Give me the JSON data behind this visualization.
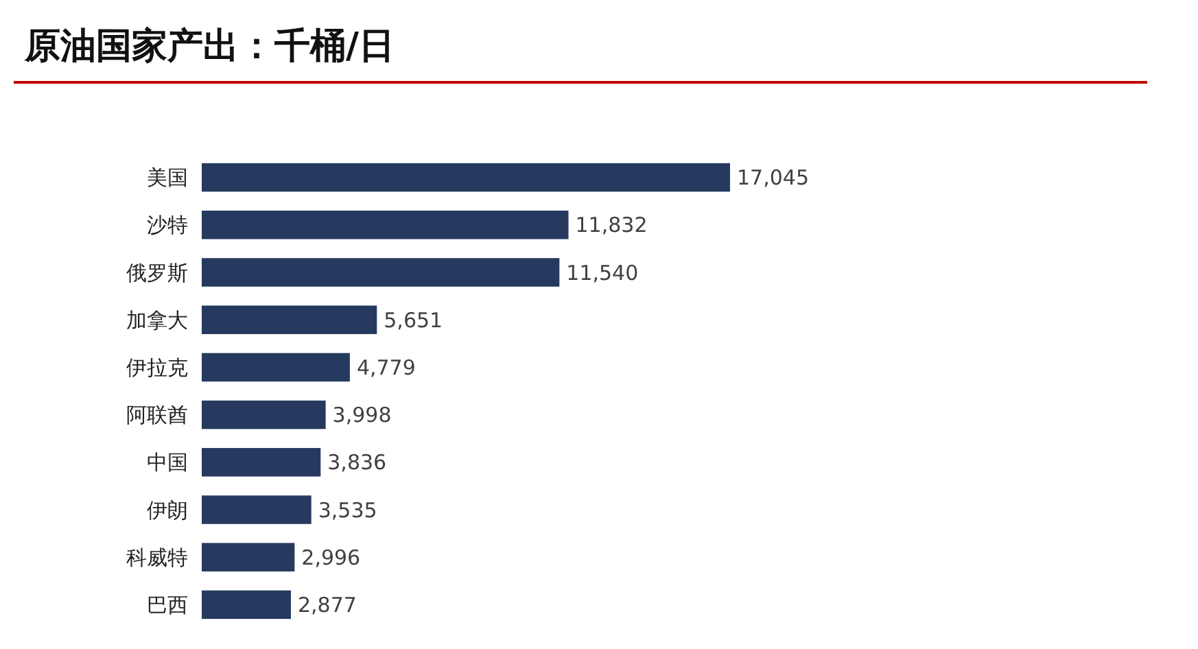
{
  "chart_data": {
    "type": "bar",
    "orientation": "horizontal",
    "title": "原油国家产出：千桶/日",
    "categories": [
      "美国",
      "沙特",
      "俄罗斯",
      "加拿大",
      "伊拉克",
      "阿联酋",
      "中国",
      "伊朗",
      "科威特",
      "巴西"
    ],
    "values": [
      17045,
      11832,
      11540,
      5651,
      4779,
      3998,
      3836,
      3535,
      2996,
      2877
    ],
    "value_labels": [
      "17,045",
      "11,832",
      "11,540",
      "5,651",
      "4,779",
      "3,998",
      "3,836",
      "3,535",
      "2,996",
      "2,877"
    ],
    "color": "#253a5e"
  }
}
